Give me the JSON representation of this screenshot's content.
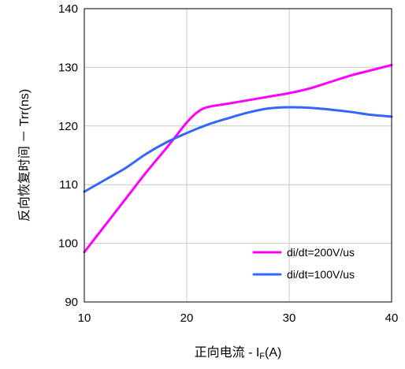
{
  "chart_data": {
    "type": "line",
    "title": "",
    "xlabel": "正向电流 - IF(A)",
    "xlabel_main": "正向电流 - I",
    "xlabel_sub": "F",
    "xlabel_tail": "(A)",
    "ylabel": "反向恢复时间 － Trr(ns)",
    "xlim": [
      10,
      40
    ],
    "ylim": [
      90,
      140
    ],
    "x_ticks": [
      10,
      20,
      30,
      40
    ],
    "y_ticks": [
      90,
      100,
      110,
      120,
      130,
      140
    ],
    "grid": true,
    "legend_position": "bottom-right",
    "series": [
      {
        "name": "di/dt=200V/us",
        "color": "#ff00ff",
        "points": [
          [
            10,
            98.5
          ],
          [
            12,
            103
          ],
          [
            14,
            107.5
          ],
          [
            16,
            112
          ],
          [
            18,
            116.2
          ],
          [
            19,
            118.4
          ],
          [
            20,
            120.6
          ],
          [
            21,
            122.3
          ],
          [
            22,
            123.2
          ],
          [
            24,
            123.8
          ],
          [
            26,
            124.4
          ],
          [
            28,
            125.0
          ],
          [
            30,
            125.6
          ],
          [
            32,
            126.4
          ],
          [
            34,
            127.5
          ],
          [
            36,
            128.6
          ],
          [
            38,
            129.5
          ],
          [
            40,
            130.4
          ]
        ]
      },
      {
        "name": "di/dt=100V/us",
        "color": "#3366ff",
        "points": [
          [
            10,
            108.8
          ],
          [
            12,
            110.8
          ],
          [
            14,
            112.8
          ],
          [
            16,
            115.2
          ],
          [
            18,
            117.2
          ],
          [
            20,
            118.8
          ],
          [
            22,
            120.2
          ],
          [
            24,
            121.3
          ],
          [
            26,
            122.3
          ],
          [
            28,
            123.0
          ],
          [
            30,
            123.2
          ],
          [
            32,
            123.1
          ],
          [
            34,
            122.8
          ],
          [
            36,
            122.4
          ],
          [
            38,
            121.9
          ],
          [
            40,
            121.6
          ]
        ]
      }
    ]
  }
}
